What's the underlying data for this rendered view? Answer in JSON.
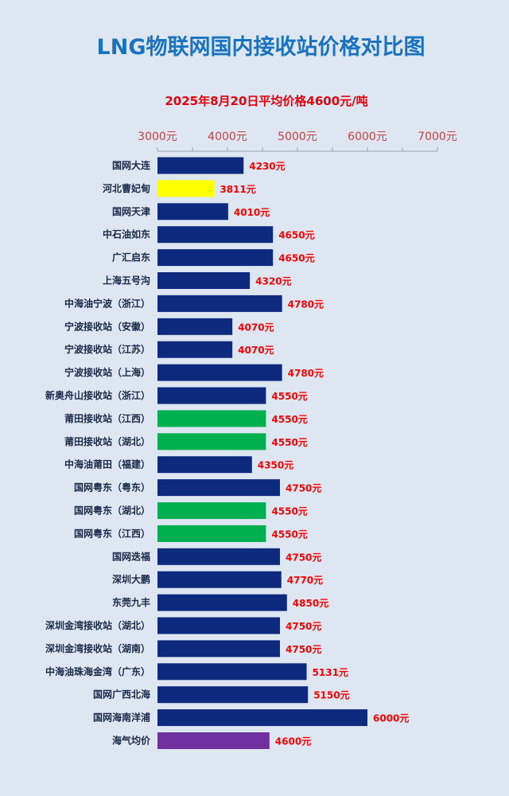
{
  "chart_data": {
    "type": "bar",
    "orientation": "horizontal",
    "title": "LNG物联网国内接收站价格对比图",
    "subtitle": "2025年8月20日平均价格4600元/吨",
    "xlim": [
      3000,
      7000
    ],
    "x_ticks": [
      "3000元",
      "4000元",
      "5000元",
      "6000元",
      "7000元"
    ],
    "x_tick_values": [
      3000,
      4000,
      5000,
      6000,
      7000
    ],
    "value_suffix": "元",
    "categories": [
      "国网大连",
      "河北曹妃甸",
      "国网天津",
      "中石油如东",
      "广汇启东",
      "上海五号沟",
      "中海油宁波（浙江）",
      "宁波接收站（安徽）",
      "宁波接收站（江苏）",
      "宁波接收站（上海）",
      "新奥舟山接收站（浙江）",
      "莆田接收站（江西）",
      "莆田接收站（湖北）",
      "中海油莆田（福建）",
      "国网粤东（粤东）",
      "国网粤东（湖北）",
      "国网粤东（江西）",
      "国网迭福",
      "深圳大鹏",
      "东莞九丰",
      "深圳金湾接收站（湖北）",
      "深圳金湾接收站（湖南）",
      "中海油珠海金湾（广东）",
      "国网广西北海",
      "国网海南洋浦",
      "海气均价"
    ],
    "values": [
      4230,
      3811,
      4010,
      4650,
      4650,
      4320,
      4780,
      4070,
      4070,
      4780,
      4550,
      4550,
      4550,
      4350,
      4750,
      4550,
      4550,
      4750,
      4770,
      4850,
      4750,
      4750,
      5131,
      5150,
      6000,
      4600
    ],
    "bar_colors": [
      "#0d2a7e",
      "#ffff00",
      "#0d2a7e",
      "#0d2a7e",
      "#0d2a7e",
      "#0d2a7e",
      "#0d2a7e",
      "#0d2a7e",
      "#0d2a7e",
      "#0d2a7e",
      "#0d2a7e",
      "#00b050",
      "#00b050",
      "#0d2a7e",
      "#0d2a7e",
      "#00b050",
      "#00b050",
      "#0d2a7e",
      "#0d2a7e",
      "#0d2a7e",
      "#0d2a7e",
      "#0d2a7e",
      "#0d2a7e",
      "#0d2a7e",
      "#0d2a7e",
      "#7030a0"
    ],
    "grid": false,
    "legend": "none"
  }
}
